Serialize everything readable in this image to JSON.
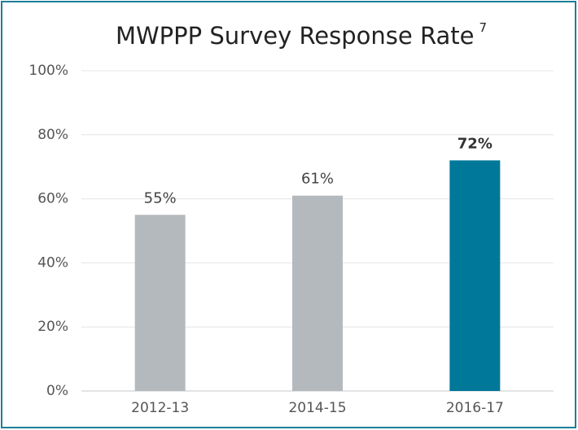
{
  "chart_data": {
    "type": "bar",
    "title": "MWPPP Survey Response Rate",
    "title_superscript": "7",
    "categories": [
      "2012-13",
      "2014-15",
      "2016-17"
    ],
    "values": [
      55,
      61,
      72
    ],
    "value_labels": [
      "55%",
      "61%",
      "72%"
    ],
    "colors": [
      "#b4b9be",
      "#b4b9be",
      "#00789a"
    ],
    "ylim": [
      0,
      100
    ],
    "yticks": [
      {
        "value": 0,
        "label": "0%"
      },
      {
        "value": 20,
        "label": "20%"
      },
      {
        "value": 40,
        "label": "40%"
      },
      {
        "value": 60,
        "label": "60%"
      },
      {
        "value": 80,
        "label": "80%"
      },
      {
        "value": 100,
        "label": "100%"
      }
    ],
    "grid": true
  }
}
